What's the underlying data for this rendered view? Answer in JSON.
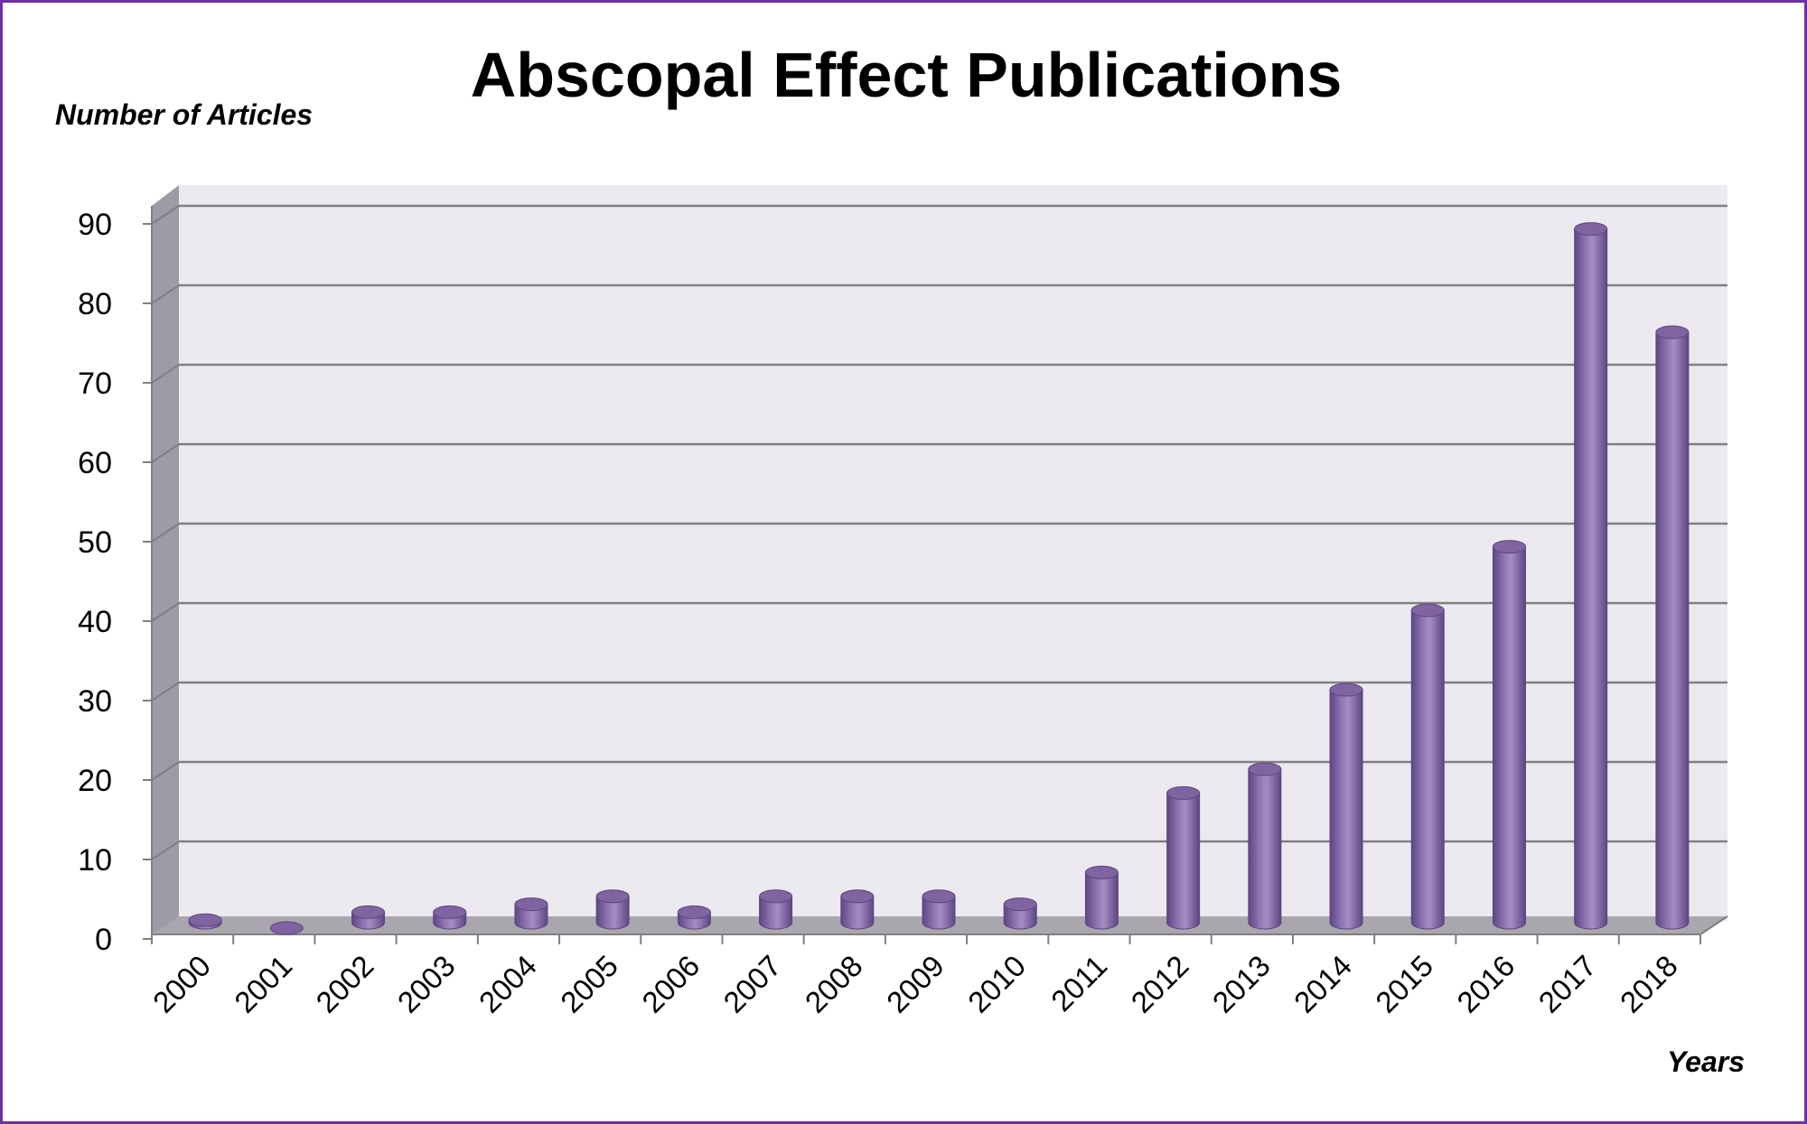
{
  "chart_data": {
    "type": "bar",
    "title": "Abscopal Effect Publications",
    "ylabel": "Number of Articles",
    "xlabel": "Years",
    "ylim": [
      0,
      90
    ],
    "yticks": [
      "0",
      "10",
      "20",
      "30",
      "40",
      "50",
      "60",
      "70",
      "80",
      "90"
    ],
    "categories": [
      "2000",
      "2001",
      "2002",
      "2003",
      "2004",
      "2005",
      "2006",
      "2007",
      "2008",
      "2009",
      "2010",
      "2011",
      "2012",
      "2013",
      "2014",
      "2015",
      "2016",
      "2017",
      "2018"
    ],
    "values": [
      1,
      0,
      2,
      2,
      3,
      4,
      2,
      4,
      4,
      4,
      3,
      7,
      17,
      20,
      30,
      40,
      48,
      88,
      75
    ],
    "grid": true,
    "legend": "none",
    "style": "3d-cylinder"
  },
  "colors": {
    "bar": "#8064a2",
    "bar_dark": "#5d4683",
    "bar_light": "#a58dc4",
    "frame": "#7030a0",
    "wall": "#eceaf0",
    "side_wall": "#9e9aa6",
    "floor": "#a9a6ad",
    "grid": "#808080"
  }
}
